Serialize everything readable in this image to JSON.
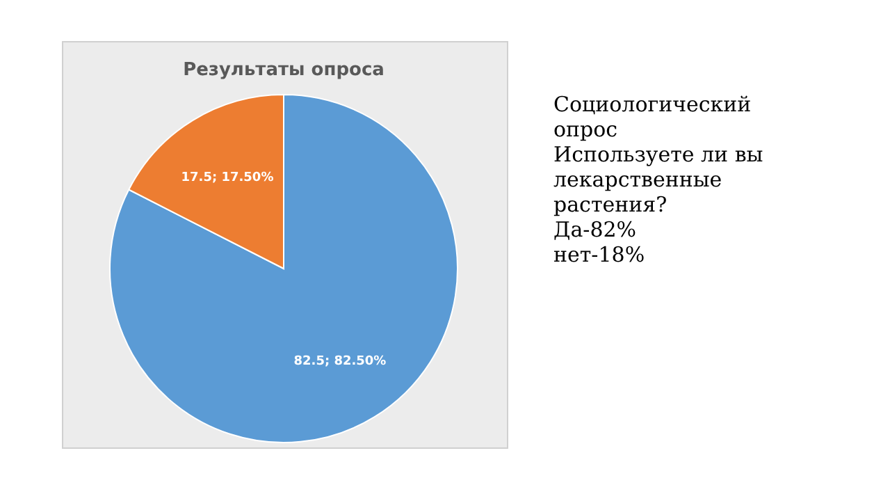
{
  "chart_data": {
    "type": "pie",
    "title": "Результаты опроса",
    "categories": [
      null,
      null
    ],
    "values": [
      82.5,
      17.5
    ],
    "colors": [
      "#5b9bd5",
      "#ed7d31"
    ],
    "value_labels": [
      "82.5; 82.50%",
      "17.5; 17.50%"
    ],
    "annotations": [
      "Социологический опрос",
      "Используете ли вы лекарственные растения?",
      "Да-82%",
      "нет-18%"
    ]
  }
}
